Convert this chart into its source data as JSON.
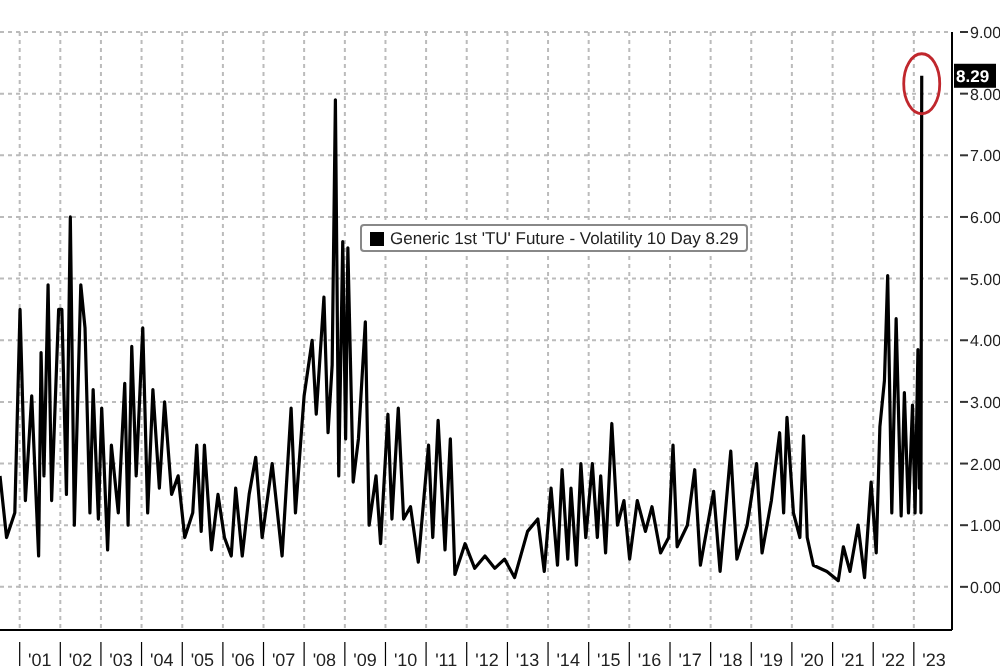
{
  "chart_data": {
    "type": "line",
    "x": [
      "2000-07-08",
      "2000-09-05",
      "2000-11-18",
      "2001-01-04",
      "2001-02-21",
      "2001-04-19",
      "2001-06-20",
      "2001-07-12",
      "2001-08-07",
      "2001-09-13",
      "2001-10-15",
      "2001-12-17",
      "2002-01-15",
      "2002-02-25",
      "2002-04-01",
      "2002-05-07",
      "2002-07-04",
      "2002-08-11",
      "2002-09-24",
      "2002-10-23",
      "2002-12-09",
      "2003-01-08",
      "2003-03-02",
      "2003-04-05",
      "2003-06-06",
      "2003-08-03",
      "2003-09-02",
      "2003-10-05",
      "2003-11-14",
      "2004-01-12",
      "2004-02-25",
      "2004-04-12",
      "2004-06-09",
      "2004-07-26",
      "2004-09-27",
      "2004-11-25",
      "2005-01-23",
      "2005-04-05",
      "2005-05-11",
      "2005-06-20",
      "2005-07-19",
      "2005-09-20",
      "2005-11-18",
      "2006-01-15",
      "2006-03-17",
      "2006-04-26",
      "2006-06-24",
      "2006-08-25",
      "2006-10-23",
      "2006-12-20",
      "2007-03-20",
      "2007-06-17",
      "2007-09-06",
      "2007-10-15",
      "2008-01-01",
      "2008-03-13",
      "2008-04-19",
      "2008-06-27",
      "2008-08-03",
      "2008-09-09",
      "2008-10-08",
      "2008-11-07",
      "2008-12-13",
      "2009-01-08",
      "2009-01-28",
      "2009-03-17",
      "2009-05-03",
      "2009-07-04",
      "2009-08-07",
      "2009-10-08",
      "2009-11-18",
      "2010-01-23",
      "2010-02-28",
      "2010-04-26",
      "2010-06-13",
      "2010-08-14",
      "2010-10-23",
      "2011-01-23",
      "2011-03-02",
      "2011-04-19",
      "2011-06-20",
      "2011-08-07",
      "2011-09-17",
      "2011-12-17",
      "2012-03-13",
      "2012-06-13",
      "2012-09-09",
      "2012-12-06",
      "2013-03-06",
      "2013-07-01",
      "2013-10-01",
      "2013-11-28",
      "2014-01-28",
      "2014-03-27",
      "2014-05-07",
      "2014-06-27",
      "2014-07-26",
      "2014-09-13",
      "2014-10-23",
      "2014-12-06",
      "2015-02-03",
      "2015-03-20",
      "2015-04-19",
      "2015-06-02",
      "2015-07-28",
      "2015-09-17",
      "2015-11-14",
      "2016-01-04",
      "2016-03-13",
      "2016-05-25",
      "2016-07-23",
      "2016-10-08",
      "2016-12-20",
      "2017-01-28",
      "2017-03-06",
      "2017-06-06",
      "2017-08-11",
      "2017-10-01",
      "2018-01-28",
      "2018-03-27",
      "2018-07-01",
      "2018-08-25",
      "2018-11-25",
      "2019-02-18",
      "2019-04-08",
      "2019-07-01",
      "2019-09-13",
      "2019-10-19",
      "2019-11-18",
      "2020-01-15",
      "2020-03-13",
      "2020-04-15",
      "2020-05-18",
      "2020-07-12",
      "2020-11-11",
      "2021-02-21",
      "2021-04-08",
      "2021-06-06",
      "2021-08-18",
      "2021-10-15",
      "2021-12-13",
      "2022-01-28",
      "2022-03-02",
      "2022-04-12",
      "2022-05-11",
      "2022-06-17",
      "2022-07-26",
      "2022-09-09",
      "2022-10-08",
      "2022-11-14",
      "2022-12-20",
      "2023-01-12",
      "2023-02-07",
      "2023-02-20",
      "2023-03-01",
      "2023-03-06",
      "2023-03-13"
    ],
    "series": [
      {
        "name": "Generic 1st 'TU' Future - Volatility 10 Day 8.29",
        "color": "#000000",
        "values": [
          1.8,
          0.8,
          1.2,
          4.5,
          1.4,
          3.1,
          0.5,
          3.8,
          1.8,
          4.9,
          1.4,
          4.5,
          4.5,
          1.5,
          6.0,
          1.0,
          4.9,
          4.2,
          1.2,
          3.2,
          1.1,
          2.9,
          0.6,
          2.3,
          1.2,
          3.3,
          1.0,
          3.9,
          1.8,
          4.2,
          1.2,
          3.2,
          1.6,
          3.0,
          1.5,
          1.8,
          0.8,
          1.2,
          2.3,
          0.9,
          2.3,
          0.6,
          1.5,
          0.8,
          0.5,
          1.6,
          0.5,
          1.5,
          2.1,
          0.8,
          2.0,
          0.5,
          2.9,
          1.2,
          3.1,
          4.0,
          2.8,
          4.7,
          2.5,
          3.6,
          7.9,
          1.8,
          5.6,
          2.4,
          5.5,
          1.7,
          2.4,
          4.3,
          1.0,
          1.8,
          0.7,
          2.8,
          1.1,
          2.9,
          1.1,
          1.3,
          0.4,
          2.3,
          0.8,
          2.7,
          0.6,
          2.4,
          0.2,
          0.7,
          0.3,
          0.5,
          0.3,
          0.45,
          0.15,
          0.9,
          1.1,
          0.25,
          1.6,
          0.35,
          1.9,
          0.45,
          1.6,
          0.35,
          2.0,
          0.8,
          2.0,
          0.8,
          1.8,
          0.55,
          2.65,
          1.0,
          1.4,
          0.45,
          1.4,
          0.9,
          1.3,
          0.55,
          0.8,
          2.3,
          0.65,
          1.0,
          1.9,
          0.35,
          1.55,
          0.25,
          2.2,
          0.45,
          1.0,
          2.0,
          0.55,
          1.4,
          2.5,
          1.2,
          2.75,
          1.2,
          0.8,
          2.45,
          0.8,
          0.35,
          0.25,
          0.1,
          0.65,
          0.25,
          1.0,
          0.15,
          1.7,
          0.55,
          2.6,
          3.35,
          5.05,
          1.2,
          4.35,
          1.15,
          3.15,
          1.2,
          2.95,
          1.2,
          3.85,
          1.6,
          2.95,
          1.2,
          8.29
        ]
      }
    ],
    "xlim": [
      "2000-07-08",
      "2023-12-10"
    ],
    "xticks": [
      {
        "value": "2001",
        "label": null
      },
      {
        "value": "2001-07",
        "label": "'01"
      },
      {
        "value": "2002",
        "label": null
      },
      {
        "value": "2002-07",
        "label": "'02"
      },
      {
        "value": "2003",
        "label": null
      },
      {
        "value": "2003-07",
        "label": "'03"
      },
      {
        "value": "2004",
        "label": null
      },
      {
        "value": "2004-07",
        "label": "'04"
      },
      {
        "value": "2005",
        "label": null
      },
      {
        "value": "2005-07",
        "label": "'05"
      },
      {
        "value": "2006",
        "label": null
      },
      {
        "value": "2006-07",
        "label": "'06"
      },
      {
        "value": "2007",
        "label": null
      },
      {
        "value": "2007-07",
        "label": "'07"
      },
      {
        "value": "2008",
        "label": null
      },
      {
        "value": "2008-07",
        "label": "'08"
      },
      {
        "value": "2009",
        "label": null
      },
      {
        "value": "2009-07",
        "label": "'09"
      },
      {
        "value": "2010",
        "label": null
      },
      {
        "value": "2010-07",
        "label": "'10"
      },
      {
        "value": "2011",
        "label": null
      },
      {
        "value": "2011-07",
        "label": "'11"
      },
      {
        "value": "2012",
        "label": null
      },
      {
        "value": "2012-07",
        "label": "'12"
      },
      {
        "value": "2013",
        "label": null
      },
      {
        "value": "2013-07",
        "label": "'13"
      },
      {
        "value": "2014",
        "label": null
      },
      {
        "value": "2014-07",
        "label": "'14"
      },
      {
        "value": "2015",
        "label": null
      },
      {
        "value": "2015-07",
        "label": "'15"
      },
      {
        "value": "2016",
        "label": null
      },
      {
        "value": "2016-07",
        "label": "'16"
      },
      {
        "value": "2017",
        "label": null
      },
      {
        "value": "2017-07",
        "label": "'17"
      },
      {
        "value": "2018",
        "label": null
      },
      {
        "value": "2018-07",
        "label": "'18"
      },
      {
        "value": "2019",
        "label": null
      },
      {
        "value": "2019-07",
        "label": "'19"
      },
      {
        "value": "2020",
        "label": null
      },
      {
        "value": "2020-07",
        "label": "'20"
      },
      {
        "value": "2021",
        "label": null
      },
      {
        "value": "2021-07",
        "label": "'21"
      },
      {
        "value": "2022",
        "label": null
      },
      {
        "value": "2022-07",
        "label": "'22"
      },
      {
        "value": "2023",
        "label": null
      },
      {
        "value": "2023-07",
        "label": "'23"
      }
    ],
    "ylim": [
      -0.7,
      9
    ],
    "yticks": [
      {
        "value": 0,
        "label": "0.00"
      },
      {
        "value": 1,
        "label": "1.00"
      },
      {
        "value": 2,
        "label": "2.00"
      },
      {
        "value": 3,
        "label": "3.00"
      },
      {
        "value": 4,
        "label": "4.00"
      },
      {
        "value": 5,
        "label": "5.00"
      },
      {
        "value": 6,
        "label": "6.00"
      },
      {
        "value": 7,
        "label": "7.00"
      },
      {
        "value": 8,
        "label": "8.00"
      },
      {
        "value": 9,
        "label": "9.00"
      }
    ],
    "annotations": [
      {
        "text": "8.29",
        "x": "2023-03-13",
        "y": 8.29
      }
    ],
    "grid": true,
    "legend": "top",
    "marker": "none",
    "line_style": "solid"
  }
}
